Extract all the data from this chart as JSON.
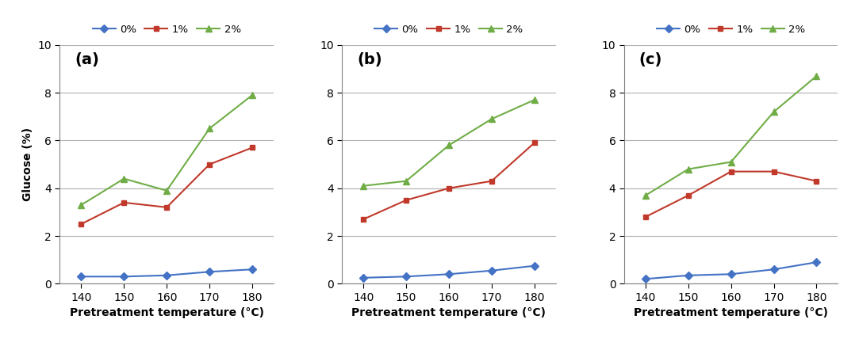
{
  "x": [
    140,
    150,
    160,
    170,
    180
  ],
  "panels": [
    {
      "label": "(a)",
      "series": {
        "0%": [
          0.3,
          0.3,
          0.35,
          0.5,
          0.6
        ],
        "1%": [
          2.5,
          3.4,
          3.2,
          5.0,
          5.7
        ],
        "2%": [
          3.3,
          4.4,
          3.9,
          6.5,
          7.9
        ]
      }
    },
    {
      "label": "(b)",
      "series": {
        "0%": [
          0.25,
          0.3,
          0.4,
          0.55,
          0.75
        ],
        "1%": [
          2.7,
          3.5,
          4.0,
          4.3,
          5.9
        ],
        "2%": [
          4.1,
          4.3,
          5.8,
          6.9,
          7.7
        ]
      }
    },
    {
      "label": "(c)",
      "series": {
        "0%": [
          0.2,
          0.35,
          0.4,
          0.6,
          0.9
        ],
        "1%": [
          2.8,
          3.7,
          4.7,
          4.7,
          4.3
        ],
        "2%": [
          3.7,
          4.8,
          5.1,
          7.2,
          8.7
        ]
      }
    }
  ],
  "line_styles": {
    "0%": {
      "color": "#4472C4",
      "marker": "D",
      "markersize": 5
    },
    "1%": {
      "color": "#C0392B",
      "marker": "s",
      "markersize": 5
    },
    "2%": {
      "color": "#70AD47",
      "marker": "^",
      "markersize": 6
    }
  },
  "legend_labels": [
    "0%",
    "1%",
    "2%"
  ],
  "xlabel": "Pretreatment temperature (°C)",
  "ylabel": "Glucose (%)",
  "ylim": [
    0,
    10
  ],
  "yticks": [
    0,
    2,
    4,
    6,
    8,
    10
  ],
  "xticks": [
    140,
    150,
    160,
    170,
    180
  ],
  "background_color": "#ffffff",
  "grid_color": "#b0b0b0",
  "spine_color": "#808080"
}
